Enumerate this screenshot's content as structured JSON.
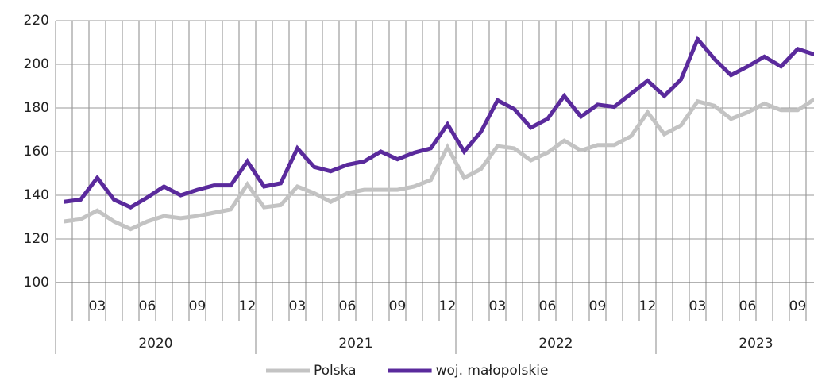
{
  "chart_data": {
    "type": "line",
    "categories": [
      null,
      null,
      "03",
      null,
      null,
      "06",
      null,
      null,
      "09",
      null,
      null,
      "12",
      null,
      null,
      "03",
      null,
      null,
      "06",
      null,
      null,
      "09",
      null,
      null,
      "12",
      null,
      null,
      "03",
      null,
      null,
      "06",
      null,
      null,
      "09",
      null,
      null,
      "12",
      null,
      null,
      "03",
      null,
      null,
      "06",
      null,
      null,
      "09",
      null
    ],
    "years": [
      "2020",
      "2021",
      "2022",
      "2023"
    ],
    "series": [
      {
        "name": "Polska",
        "color": "#c3c3c3",
        "values": [
          128,
          129,
          133,
          128,
          124.5,
          128,
          130.5,
          129.5,
          130.5,
          132,
          133.5,
          145,
          134.5,
          135.5,
          144,
          141,
          137,
          141,
          142.5,
          142.5,
          142.5,
          144,
          147,
          162,
          148,
          152,
          162.5,
          161.5,
          156,
          159.5,
          165,
          160.5,
          163,
          163,
          167,
          178,
          168,
          172,
          183,
          181,
          175,
          178,
          182,
          179,
          179,
          184
        ]
      },
      {
        "name": "woj. małopolskie",
        "color": "#5a2a9c",
        "values": [
          137,
          138,
          148,
          138,
          134.5,
          139,
          144,
          140,
          142.5,
          144.5,
          144.5,
          155.5,
          144,
          145.5,
          161.5,
          153,
          151,
          154,
          155.5,
          160,
          156.5,
          159.5,
          161.5,
          172.5,
          160,
          169,
          183.5,
          179.5,
          171,
          175,
          185.5,
          176,
          181.5,
          180.5,
          186.5,
          192.5,
          185.5,
          193,
          211.5,
          202.5,
          195,
          199,
          203.5,
          199,
          207,
          204.5
        ]
      }
    ],
    "ylim": [
      100,
      220
    ],
    "yticks": [
      100,
      120,
      140,
      160,
      180,
      200,
      220
    ],
    "grid": true,
    "legend": "bottom"
  }
}
